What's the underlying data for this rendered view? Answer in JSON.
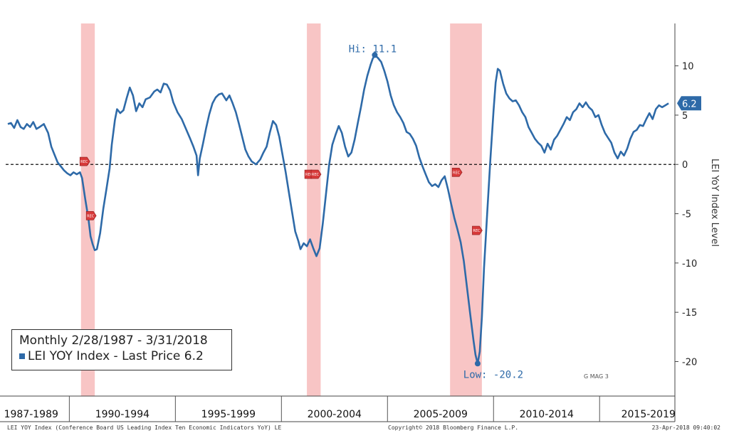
{
  "chart_data": {
    "type": "line",
    "title": "LEI YOY Index (Conference Board US Leading Index Ten Economic Indicators YoY) LE",
    "ylabel": "LEI YoY Index Level",
    "xlabel": "",
    "ylim": [
      -23.5,
      14.3
    ],
    "xlim": [
      1987.0,
      2018.55
    ],
    "yticks": [
      10,
      5,
      0,
      -5,
      -10,
      -15,
      -20
    ],
    "ytick_labels": [
      "10",
      "5",
      "0",
      "-5",
      "-10",
      "-15",
      "-20"
    ],
    "period_labels": [
      {
        "label": "1987-1989",
        "center": 1988.2
      },
      {
        "label": "1990-1994",
        "center": 1992.5
      },
      {
        "label": "1995-1999",
        "center": 1997.5
      },
      {
        "label": "2000-2004",
        "center": 2002.5
      },
      {
        "label": "2005-2009",
        "center": 2007.5
      },
      {
        "label": "2010-2014",
        "center": 2012.5
      },
      {
        "label": "2015-2019",
        "center": 2017.3
      }
    ],
    "period_dividers": [
      1990,
      1995,
      2000,
      2005,
      2010,
      2015
    ],
    "recessions": [
      [
        1990.55,
        1991.2
      ],
      [
        2001.2,
        2001.85
      ],
      [
        2007.95,
        2009.45
      ]
    ],
    "recession_marker_label": "REC",
    "recession_markers": [
      {
        "x": 1990.7,
        "y": 0.3
      },
      {
        "x": 1991.0,
        "y": -5.2
      },
      {
        "x": 2001.3,
        "y": -1.0
      },
      {
        "x": 2001.6,
        "y": -1.0
      },
      {
        "x": 2008.25,
        "y": -0.8
      },
      {
        "x": 2009.2,
        "y": -6.7
      }
    ],
    "zero_line": true,
    "series": [
      {
        "name": "LEI YOY Index",
        "color": "#2e6aa8",
        "points": [
          [
            1987.1,
            4.1
          ],
          [
            1987.25,
            4.2
          ],
          [
            1987.4,
            3.7
          ],
          [
            1987.55,
            4.5
          ],
          [
            1987.7,
            3.8
          ],
          [
            1987.85,
            3.6
          ],
          [
            1988.0,
            4.1
          ],
          [
            1988.15,
            3.8
          ],
          [
            1988.3,
            4.3
          ],
          [
            1988.45,
            3.6
          ],
          [
            1988.6,
            3.8
          ],
          [
            1988.8,
            4.1
          ],
          [
            1989.0,
            3.2
          ],
          [
            1989.15,
            1.8
          ],
          [
            1989.3,
            1.0
          ],
          [
            1989.45,
            0.2
          ],
          [
            1989.6,
            -0.2
          ],
          [
            1989.75,
            -0.6
          ],
          [
            1989.9,
            -0.9
          ],
          [
            1990.05,
            -1.1
          ],
          [
            1990.2,
            -0.8
          ],
          [
            1990.35,
            -1.0
          ],
          [
            1990.5,
            -0.8
          ],
          [
            1990.6,
            -1.4
          ],
          [
            1990.75,
            -3.5
          ],
          [
            1990.9,
            -5.5
          ],
          [
            1991.0,
            -7.3
          ],
          [
            1991.1,
            -8.1
          ],
          [
            1991.2,
            -8.7
          ],
          [
            1991.3,
            -8.6
          ],
          [
            1991.45,
            -7.0
          ],
          [
            1991.6,
            -4.5
          ],
          [
            1991.75,
            -2.5
          ],
          [
            1991.9,
            -0.4
          ],
          [
            1992.0,
            2.0
          ],
          [
            1992.15,
            4.5
          ],
          [
            1992.25,
            5.6
          ],
          [
            1992.4,
            5.2
          ],
          [
            1992.55,
            5.5
          ],
          [
            1992.7,
            6.7
          ],
          [
            1992.85,
            7.8
          ],
          [
            1993.0,
            7.0
          ],
          [
            1993.15,
            5.4
          ],
          [
            1993.3,
            6.2
          ],
          [
            1993.45,
            5.8
          ],
          [
            1993.6,
            6.6
          ],
          [
            1993.8,
            6.8
          ],
          [
            1994.0,
            7.4
          ],
          [
            1994.15,
            7.6
          ],
          [
            1994.3,
            7.3
          ],
          [
            1994.45,
            8.2
          ],
          [
            1994.6,
            8.1
          ],
          [
            1994.75,
            7.5
          ],
          [
            1994.9,
            6.3
          ],
          [
            1995.1,
            5.3
          ],
          [
            1995.3,
            4.6
          ],
          [
            1995.5,
            3.6
          ],
          [
            1995.7,
            2.6
          ],
          [
            1995.85,
            1.8
          ],
          [
            1996.0,
            0.9
          ],
          [
            1996.07,
            -1.1
          ],
          [
            1996.15,
            0.6
          ],
          [
            1996.3,
            2.1
          ],
          [
            1996.45,
            3.7
          ],
          [
            1996.6,
            5.1
          ],
          [
            1996.75,
            6.2
          ],
          [
            1996.9,
            6.8
          ],
          [
            1997.05,
            7.1
          ],
          [
            1997.2,
            7.2
          ],
          [
            1997.4,
            6.5
          ],
          [
            1997.55,
            7.0
          ],
          [
            1997.7,
            6.2
          ],
          [
            1997.85,
            5.3
          ],
          [
            1998.0,
            4.1
          ],
          [
            1998.15,
            2.8
          ],
          [
            1998.3,
            1.5
          ],
          [
            1998.45,
            0.8
          ],
          [
            1998.6,
            0.3
          ],
          [
            1998.8,
            0.0
          ],
          [
            1999.0,
            0.5
          ],
          [
            1999.15,
            1.2
          ],
          [
            1999.3,
            1.8
          ],
          [
            1999.45,
            3.2
          ],
          [
            1999.6,
            4.4
          ],
          [
            1999.75,
            4.0
          ],
          [
            1999.9,
            2.8
          ],
          [
            2000.05,
            1.0
          ],
          [
            2000.2,
            -0.8
          ],
          [
            2000.35,
            -2.8
          ],
          [
            2000.5,
            -4.8
          ],
          [
            2000.65,
            -6.8
          ],
          [
            2000.8,
            -7.8
          ],
          [
            2000.9,
            -8.6
          ],
          [
            2001.05,
            -8.0
          ],
          [
            2001.2,
            -8.3
          ],
          [
            2001.35,
            -7.6
          ],
          [
            2001.5,
            -8.5
          ],
          [
            2001.65,
            -9.3
          ],
          [
            2001.8,
            -8.5
          ],
          [
            2001.95,
            -6.0
          ],
          [
            2002.1,
            -3.0
          ],
          [
            2002.25,
            0.0
          ],
          [
            2002.4,
            2.0
          ],
          [
            2002.55,
            3.0
          ],
          [
            2002.7,
            3.9
          ],
          [
            2002.85,
            3.2
          ],
          [
            2003.0,
            1.8
          ],
          [
            2003.15,
            0.8
          ],
          [
            2003.3,
            1.2
          ],
          [
            2003.45,
            2.5
          ],
          [
            2003.6,
            4.2
          ],
          [
            2003.75,
            5.8
          ],
          [
            2003.9,
            7.6
          ],
          [
            2004.05,
            9.0
          ],
          [
            2004.2,
            10.1
          ],
          [
            2004.3,
            10.7
          ],
          [
            2004.4,
            11.1
          ],
          [
            2004.55,
            10.8
          ],
          [
            2004.7,
            10.4
          ],
          [
            2004.85,
            9.5
          ],
          [
            2005.0,
            8.4
          ],
          [
            2005.15,
            7.0
          ],
          [
            2005.3,
            6.0
          ],
          [
            2005.45,
            5.3
          ],
          [
            2005.6,
            4.8
          ],
          [
            2005.75,
            4.2
          ],
          [
            2005.9,
            3.3
          ],
          [
            2006.05,
            3.1
          ],
          [
            2006.2,
            2.6
          ],
          [
            2006.35,
            1.9
          ],
          [
            2006.5,
            0.7
          ],
          [
            2006.65,
            -0.2
          ],
          [
            2006.8,
            -1.0
          ],
          [
            2006.95,
            -1.8
          ],
          [
            2007.1,
            -2.2
          ],
          [
            2007.25,
            -2.0
          ],
          [
            2007.4,
            -2.3
          ],
          [
            2007.55,
            -1.6
          ],
          [
            2007.7,
            -1.2
          ],
          [
            2007.85,
            -2.5
          ],
          [
            2008.0,
            -4.0
          ],
          [
            2008.15,
            -5.4
          ],
          [
            2008.3,
            -6.6
          ],
          [
            2008.45,
            -7.9
          ],
          [
            2008.6,
            -9.8
          ],
          [
            2008.75,
            -12.5
          ],
          [
            2008.9,
            -15.2
          ],
          [
            2009.05,
            -17.8
          ],
          [
            2009.15,
            -19.3
          ],
          [
            2009.25,
            -20.2
          ],
          [
            2009.35,
            -19.0
          ],
          [
            2009.45,
            -15.5
          ],
          [
            2009.55,
            -10.5
          ],
          [
            2009.7,
            -5.0
          ],
          [
            2009.85,
            0.5
          ],
          [
            2010.0,
            5.5
          ],
          [
            2010.1,
            8.3
          ],
          [
            2010.2,
            9.7
          ],
          [
            2010.3,
            9.5
          ],
          [
            2010.45,
            8.2
          ],
          [
            2010.6,
            7.2
          ],
          [
            2010.75,
            6.7
          ],
          [
            2010.9,
            6.4
          ],
          [
            2011.05,
            6.5
          ],
          [
            2011.2,
            6.0
          ],
          [
            2011.35,
            5.3
          ],
          [
            2011.5,
            4.8
          ],
          [
            2011.65,
            3.8
          ],
          [
            2011.8,
            3.2
          ],
          [
            2011.95,
            2.6
          ],
          [
            2012.1,
            2.2
          ],
          [
            2012.25,
            1.9
          ],
          [
            2012.4,
            1.2
          ],
          [
            2012.55,
            2.1
          ],
          [
            2012.7,
            1.5
          ],
          [
            2012.85,
            2.5
          ],
          [
            2013.0,
            2.9
          ],
          [
            2013.15,
            3.5
          ],
          [
            2013.3,
            4.1
          ],
          [
            2013.45,
            4.8
          ],
          [
            2013.6,
            4.5
          ],
          [
            2013.75,
            5.3
          ],
          [
            2013.9,
            5.6
          ],
          [
            2014.05,
            6.2
          ],
          [
            2014.2,
            5.8
          ],
          [
            2014.35,
            6.3
          ],
          [
            2014.5,
            5.8
          ],
          [
            2014.65,
            5.5
          ],
          [
            2014.8,
            4.8
          ],
          [
            2014.95,
            5.0
          ],
          [
            2015.1,
            4.0
          ],
          [
            2015.25,
            3.2
          ],
          [
            2015.4,
            2.7
          ],
          [
            2015.55,
            2.2
          ],
          [
            2015.7,
            1.2
          ],
          [
            2015.85,
            0.6
          ],
          [
            2016.0,
            1.3
          ],
          [
            2016.15,
            0.9
          ],
          [
            2016.3,
            1.6
          ],
          [
            2016.45,
            2.6
          ],
          [
            2016.6,
            3.3
          ],
          [
            2016.75,
            3.5
          ],
          [
            2016.9,
            4.0
          ],
          [
            2017.05,
            3.9
          ],
          [
            2017.2,
            4.6
          ],
          [
            2017.35,
            5.2
          ],
          [
            2017.5,
            4.6
          ],
          [
            2017.65,
            5.6
          ],
          [
            2017.8,
            6.0
          ],
          [
            2017.95,
            5.8
          ],
          [
            2018.1,
            6.0
          ],
          [
            2018.25,
            6.2
          ]
        ]
      }
    ],
    "annotations": [
      {
        "text": "Hi: 11.1",
        "x": 2004.4,
        "y": 11.1
      },
      {
        "text": "Low: -20.2",
        "x": 2009.25,
        "y": -20.2
      }
    ],
    "last_value": {
      "text": "6.2",
      "value": 6.2
    },
    "watermark": "G MAG 3",
    "legend": {
      "period": "Monthly 2/28/1987 - 3/31/2018",
      "series": "LEI YOY Index - Last Price 6.2"
    },
    "footer": {
      "left": "LEI YOY Index (Conference Board US Leading Index Ten Economic Indicators YoY) LE",
      "center": "Copyright© 2018 Bloomberg Finance L.P.",
      "right": "23-Apr-2018 09:40:02"
    },
    "colors": {
      "line": "#2e6aa8",
      "recession": "#f8c5c5",
      "marker": "#d83a3a",
      "label_box": "#2e6aa8"
    }
  }
}
